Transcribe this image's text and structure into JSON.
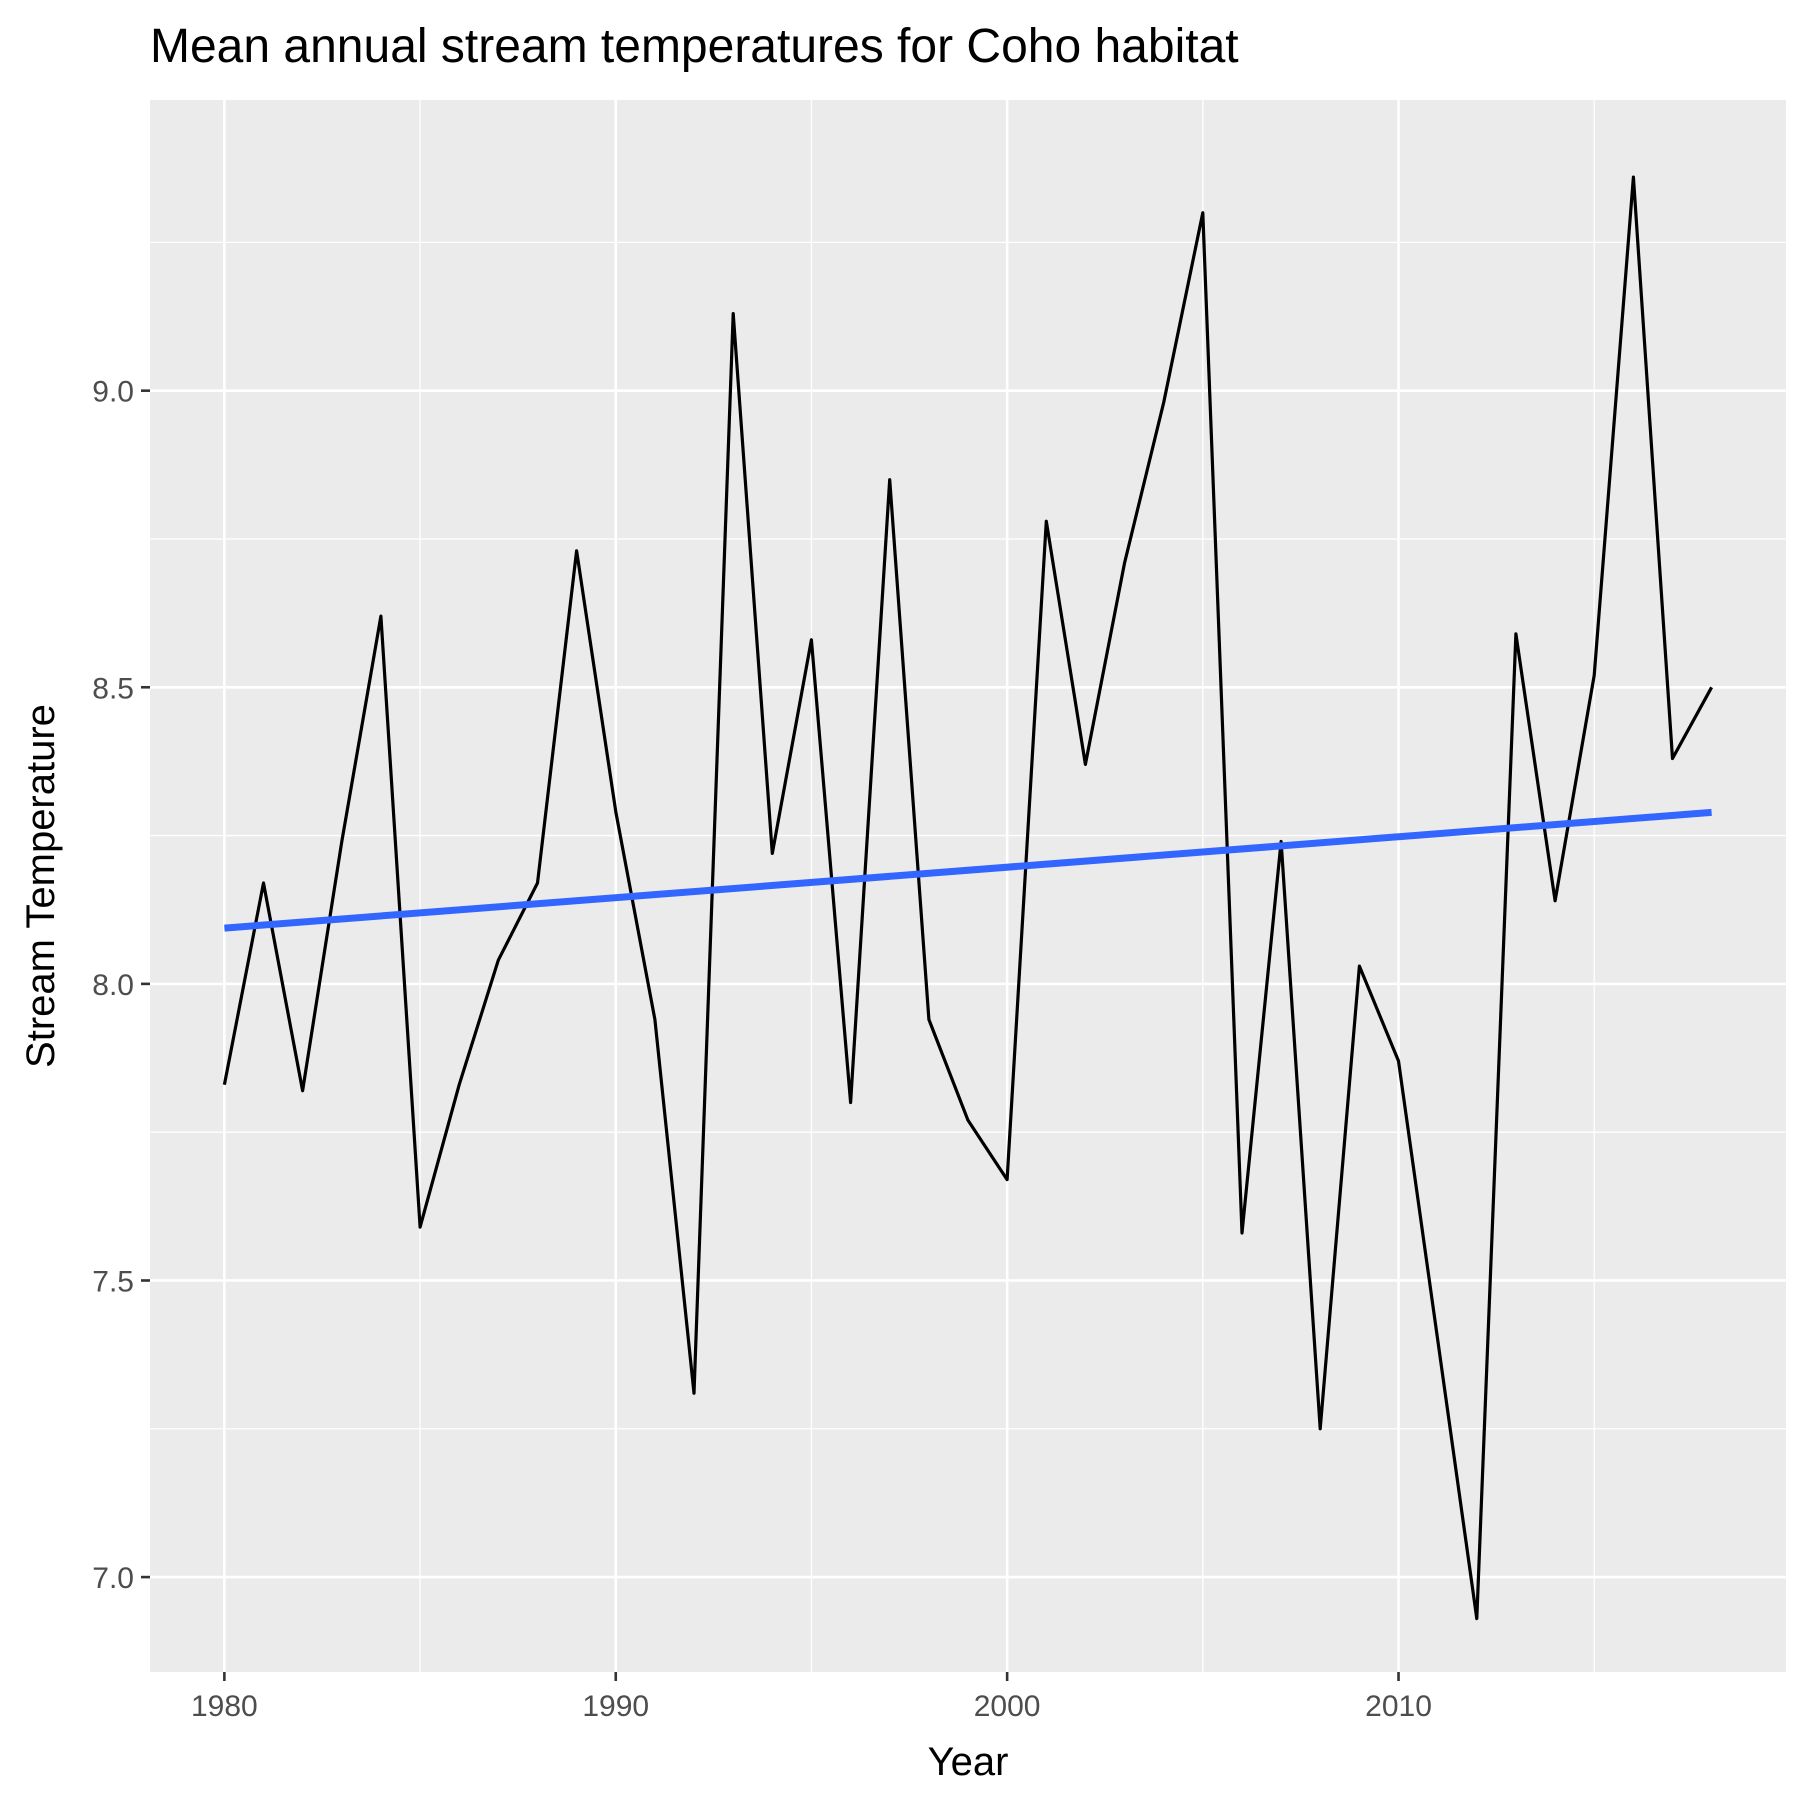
{
  "chart_data": {
    "type": "line",
    "title": "Mean annual stream temperatures for Coho habitat",
    "xlabel": "Year",
    "ylabel": "Stream Temperature",
    "xlim": [
      1978.1,
      2019.9
    ],
    "ylim": [
      6.84,
      9.49
    ],
    "x_ticks": [
      1980,
      1990,
      2000,
      2010
    ],
    "x_minor_ticks": [
      1985,
      1995,
      2005,
      2015
    ],
    "y_ticks": [
      7.0,
      7.5,
      8.0,
      8.5,
      9.0
    ],
    "y_minor_ticks": [
      7.25,
      7.75,
      8.25,
      8.75,
      9.25
    ],
    "x_tick_labels": [
      "1980",
      "1990",
      "2000",
      "2010"
    ],
    "y_tick_labels": [
      "7.0",
      "7.5",
      "8.0",
      "8.5",
      "9.0"
    ],
    "grid": true,
    "legend": "none",
    "series": [
      {
        "color": "#000000",
        "x": [
          1980,
          1981,
          1982,
          1983,
          1984,
          1985,
          1986,
          1987,
          1988,
          1989,
          1990,
          1991,
          1992,
          1993,
          1994,
          1995,
          1996,
          1997,
          1998,
          1999,
          2000,
          2001,
          2002,
          2003,
          2004,
          2005,
          2006,
          2007,
          2008,
          2009,
          2010,
          2011,
          2012,
          2013,
          2014,
          2015,
          2016,
          2017,
          2018
        ],
        "y": [
          7.83,
          8.17,
          7.82,
          8.24,
          8.62,
          7.59,
          7.83,
          8.04,
          8.17,
          8.73,
          8.29,
          7.94,
          7.31,
          9.13,
          8.22,
          8.58,
          7.8,
          8.85,
          7.94,
          7.77,
          7.67,
          8.78,
          8.37,
          8.71,
          8.98,
          9.3,
          7.58,
          8.24,
          7.25,
          8.03,
          7.87,
          7.4,
          6.93,
          8.59,
          8.14,
          8.52,
          9.36,
          8.38,
          8.5
        ]
      },
      {
        "color": "#3366ff",
        "x": [
          1980,
          2018
        ],
        "y": [
          8.094,
          8.289
        ]
      }
    ]
  }
}
